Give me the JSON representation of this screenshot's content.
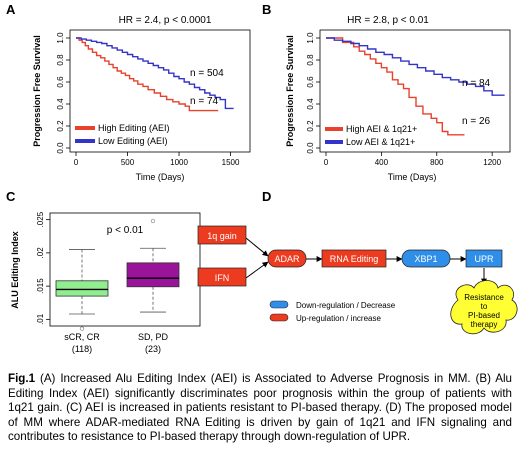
{
  "panels": [
    {
      "letter": "A"
    },
    {
      "letter": "B"
    },
    {
      "letter": "C"
    },
    {
      "letter": "D"
    }
  ],
  "colors": {
    "red": "#e8412c",
    "blue": "#3434c8",
    "green": "#90ee90",
    "purple": "#991499",
    "flow_red": "#ec3b1f",
    "flow_blue": "#2f8fe8",
    "cloud": "#ffff33"
  },
  "chart_data": [
    {
      "type": "line",
      "title": "HR = 2.4, p < 0.0001",
      "xlabel": "Time (Days)",
      "ylabel": "Progression Free Survival",
      "xlim": [
        0,
        1650
      ],
      "ylim": [
        0,
        1.0
      ],
      "xticks": [
        "0",
        "500",
        "1000",
        "1500"
      ],
      "yticks": [
        "0.0",
        "0.2",
        "0.4",
        "0.6",
        "0.8",
        "1.0"
      ],
      "legend": [
        "High Editing (AEI)",
        "Low Editing (AEI)"
      ],
      "legend_position": "bottom-left",
      "annotations": [
        "n = 504",
        "n = 74"
      ],
      "series": [
        {
          "name": "High Editing (AEI)",
          "color": "#e8412c",
          "x": [
            0,
            30,
            60,
            90,
            120,
            160,
            200,
            240,
            280,
            320,
            360,
            400,
            440,
            480,
            520,
            560,
            600,
            650,
            700,
            760,
            820,
            880,
            940,
            1000,
            1060,
            1100,
            1300,
            1380
          ],
          "y": [
            1.0,
            0.98,
            0.96,
            0.93,
            0.9,
            0.87,
            0.84,
            0.82,
            0.79,
            0.76,
            0.73,
            0.7,
            0.68,
            0.66,
            0.63,
            0.61,
            0.58,
            0.56,
            0.53,
            0.5,
            0.47,
            0.44,
            0.42,
            0.4,
            0.38,
            0.34,
            0.34,
            0.34
          ]
        },
        {
          "name": "Low Editing (AEI)",
          "color": "#3434c8",
          "x": [
            0,
            50,
            100,
            150,
            200,
            250,
            300,
            350,
            400,
            450,
            500,
            550,
            600,
            650,
            700,
            750,
            800,
            850,
            900,
            950,
            1000,
            1050,
            1100,
            1150,
            1200,
            1250,
            1300,
            1350,
            1400,
            1450,
            1500,
            1530
          ],
          "y": [
            1.0,
            0.99,
            0.98,
            0.97,
            0.96,
            0.95,
            0.93,
            0.91,
            0.89,
            0.87,
            0.85,
            0.83,
            0.81,
            0.79,
            0.77,
            0.75,
            0.73,
            0.71,
            0.68,
            0.65,
            0.63,
            0.6,
            0.58,
            0.55,
            0.53,
            0.5,
            0.48,
            0.46,
            0.44,
            0.36,
            0.36,
            0.36
          ]
        }
      ]
    },
    {
      "type": "line",
      "title": "HR = 2.8, p < 0.01",
      "xlabel": "Time (Days)",
      "ylabel": "Progression Free Survival",
      "xlim": [
        0,
        1300
      ],
      "ylim": [
        0,
        1.0
      ],
      "xticks": [
        "0",
        "400",
        "800",
        "1200"
      ],
      "yticks": [
        "0.0",
        "0.2",
        "0.4",
        "0.6",
        "0.8",
        "1.0"
      ],
      "legend": [
        "High AEI & 1q21+",
        "Low AEI & 1q21+"
      ],
      "legend_position": "bottom-left",
      "annotations": [
        "n = 84",
        "n = 26"
      ],
      "series": [
        {
          "name": "High AEI & 1q21+",
          "color": "#e8412c",
          "x": [
            0,
            80,
            120,
            200,
            240,
            280,
            320,
            360,
            400,
            440,
            480,
            520,
            560,
            600,
            650,
            700,
            760,
            800,
            840,
            880,
            1000
          ],
          "y": [
            1.0,
            1.0,
            0.96,
            0.92,
            0.88,
            0.85,
            0.81,
            0.77,
            0.73,
            0.69,
            0.62,
            0.58,
            0.54,
            0.46,
            0.38,
            0.31,
            0.27,
            0.23,
            0.15,
            0.12,
            0.12
          ]
        },
        {
          "name": "Low AEI & 1q21+",
          "color": "#3434c8",
          "x": [
            0,
            60,
            120,
            180,
            240,
            300,
            360,
            420,
            480,
            540,
            600,
            660,
            720,
            780,
            840,
            900,
            960,
            1020,
            1080,
            1140,
            1200,
            1240,
            1290
          ],
          "y": [
            1.0,
            0.98,
            0.97,
            0.95,
            0.93,
            0.9,
            0.87,
            0.85,
            0.82,
            0.79,
            0.76,
            0.73,
            0.7,
            0.67,
            0.64,
            0.62,
            0.6,
            0.58,
            0.56,
            0.52,
            0.48,
            0.48,
            0.48
          ]
        }
      ]
    },
    {
      "type": "box",
      "title": "p < 0.01",
      "ylabel": "ALU Editing Index",
      "ylim": [
        0.009,
        0.026
      ],
      "yticks": [
        ".01",
        ".015",
        ".02",
        ".025"
      ],
      "categories": [
        "sCR, CR\n(118)",
        "SD, PD\n(23)"
      ],
      "boxes": [
        {
          "name": "sCR, CR",
          "n": "(118)",
          "color": "#90ee90",
          "whisker_low": 0.0108,
          "q1": 0.0135,
          "median": 0.0145,
          "q3": 0.0158,
          "whisker_high": 0.0205,
          "outliers": [
            0.0086
          ]
        },
        {
          "name": "SD, PD",
          "n": "(23)",
          "color": "#991499",
          "whisker_low": 0.0111,
          "q1": 0.0149,
          "median": 0.0162,
          "q3": 0.0185,
          "whisker_high": 0.0207,
          "outliers": [
            0.0248
          ]
        }
      ]
    }
  ],
  "diagram": {
    "nodes": {
      "gain": "1q gain",
      "ifn": "IFN",
      "adar": "ADAR",
      "rna": "RNA Editing",
      "xbp1": "XBP1",
      "upr": "UPR",
      "resist": [
        "Resistance",
        "to",
        "PI-based",
        "therapy"
      ]
    },
    "legend": {
      "down": "Down-regulation / Decrease",
      "up": "Up-regulation / increase"
    }
  },
  "caption": {
    "label": "Fig.1",
    "text": " (A) Increased Alu Editing Index (AEI) is Associated to Adverse Prognosis in MM. (B) Alu Editing Index (AEI) significantly discriminates poor prognosis within the group of patients with 1q21 gain. (C) AEI is increased in patients resistant to PI-based therapy. (D) The proposed model of MM where ADAR-mediated RNA Editing is driven by gain of 1q21 and IFN signaling and contributes to resistance to PI-based therapy through down-regulation of UPR."
  }
}
